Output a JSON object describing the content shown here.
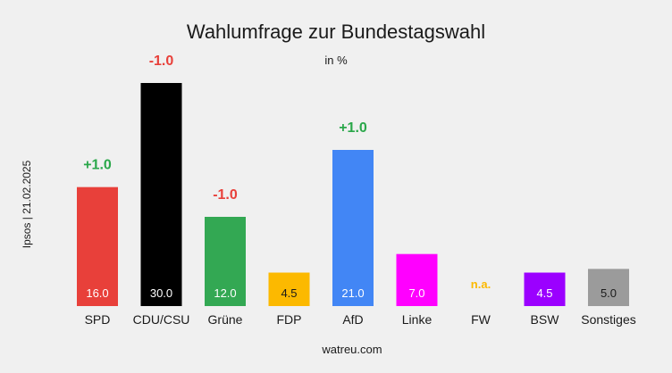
{
  "chart_data": {
    "type": "bar",
    "title": "Wahlumfrage zur Bundestagswahl",
    "subtitle": "in %",
    "side_label": "Ipsos | 21.02.2025",
    "footer": "watreu.com",
    "ylim": [
      0,
      30
    ],
    "grid": false,
    "categories": [
      "SPD",
      "CDU/CSU",
      "Grüne",
      "FDP",
      "AfD",
      "Linke",
      "FW",
      "BSW",
      "Sonstiges"
    ],
    "values": [
      16.0,
      30.0,
      12.0,
      4.5,
      21.0,
      7.0,
      null,
      4.5,
      5.0
    ],
    "value_labels": [
      "16.0",
      "30.0",
      "12.0",
      "4.5",
      "21.0",
      "7.0",
      "n.a.",
      "4.5",
      "5.0"
    ],
    "changes": [
      "+1.0",
      "-1.0",
      "-1.0",
      "",
      "+1.0",
      "",
      "",
      "",
      ""
    ],
    "colors": [
      "#e8403a",
      "#000000",
      "#33a853",
      "#fcb900",
      "#4286f5",
      "#ff00ff",
      "#fcb900",
      "#9b00ff",
      "#9b9b9b"
    ],
    "value_label_colors": [
      "#ffffff",
      "#ffffff",
      "#ffffff",
      "#1a1a1a",
      "#ffffff",
      "#ffffff",
      "#fcb900",
      "#ffffff",
      "#1a1a1a"
    ],
    "change_colors": {
      "positive": "#2aa74a",
      "negative": "#e8403a"
    }
  }
}
